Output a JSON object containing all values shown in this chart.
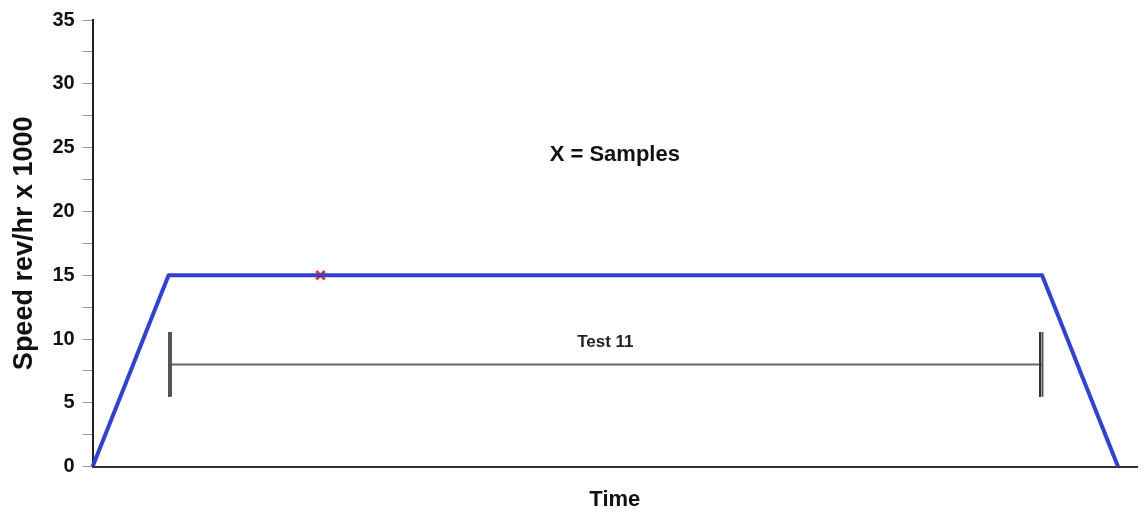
{
  "chart_data": {
    "type": "line",
    "xlabel": "Time",
    "ylabel": "Speed rev/hr x 1000",
    "categories": [
      null,
      null,
      null,
      null,
      null,
      null,
      null,
      null,
      null,
      null,
      null,
      null,
      null,
      null,
      null,
      null,
      null,
      null,
      null,
      null,
      null,
      null,
      null,
      null,
      null,
      null,
      null,
      null,
      null,
      null,
      null,
      null,
      null,
      null,
      null,
      null,
      null,
      null,
      null,
      null,
      null,
      null,
      null,
      null,
      null,
      null,
      null,
      null,
      null,
      null,
      null,
      null,
      null,
      null,
      null,
      null
    ],
    "series": [
      {
        "color": "#3341cc",
        "values": [
          0,
          3.75,
          7.5,
          11.25,
          15,
          15,
          15,
          15,
          15,
          15,
          15,
          15,
          15,
          15,
          15,
          15,
          15,
          15,
          15,
          15,
          15,
          15,
          15,
          15,
          15,
          15,
          15,
          15,
          15,
          15,
          15,
          15,
          15,
          15,
          15,
          15,
          15,
          15,
          15,
          15,
          15,
          15,
          15,
          15,
          15,
          15,
          15,
          15,
          15,
          15,
          15,
          11.25,
          7.5,
          3.75,
          0,
          null
        ]
      },
      {
        "type": "scatter",
        "color": "#f03a1e",
        "marker": "cross",
        "values": [
          null,
          null,
          null,
          null,
          null,
          null,
          null,
          null,
          null,
          null,
          null,
          null,
          15,
          null,
          null,
          null,
          null,
          null,
          null,
          null,
          null,
          null,
          null,
          null,
          null,
          null,
          null,
          null,
          null,
          null,
          null,
          null,
          null,
          null,
          null,
          null,
          null,
          null,
          null,
          null,
          null,
          null,
          null,
          null,
          null,
          null,
          null,
          null,
          null,
          null,
          null,
          null,
          null,
          null,
          null,
          null
        ]
      },
      {
        "type": "line",
        "color": "#666666",
        "values": [
          null,
          null,
          null,
          null,
          8,
          8,
          8,
          8,
          8,
          8,
          8,
          8,
          8,
          8,
          8,
          8,
          8,
          8,
          8,
          8,
          8,
          8,
          8,
          8,
          8,
          8,
          8,
          8,
          8,
          8,
          8,
          8,
          8,
          8,
          8,
          8,
          8,
          8,
          8,
          8,
          8,
          8,
          8,
          8,
          8,
          8,
          8,
          8,
          8,
          8,
          8,
          null,
          null,
          null,
          null,
          null
        ]
      }
    ],
    "ylim": [
      0,
      35
    ],
    "yticks": [
      0,
      {
        "value": 2.5,
        "label": null
      },
      5,
      {
        "value": 7.5,
        "label": null
      },
      10,
      {
        "value": 12.5,
        "label": null
      },
      15,
      {
        "value": 17.5,
        "label": null
      },
      20,
      {
        "value": 22.5,
        "label": null
      },
      25,
      {
        "value": 27.5,
        "label": null
      },
      30,
      {
        "value": 32.5,
        "label": null
      },
      35
    ],
    "tick_labels": "y",
    "grid": false,
    "legend": false,
    "marker": "none",
    "line_style": "solid",
    "annotations": [
      "X = Samples",
      "Test 11"
    ]
  }
}
